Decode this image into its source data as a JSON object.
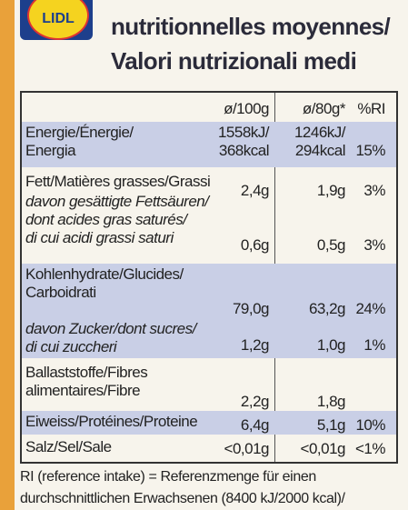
{
  "header": {
    "logo": "LIDL",
    "title_lines": [
      "nutritionnelles moyennes/",
      "Valori nutrizionali medi"
    ]
  },
  "table": {
    "columns": [
      "ø/100g",
      "ø/80g*",
      "%RI"
    ],
    "rows": [
      {
        "label": [
          "Energie/Énergie/",
          "Energia"
        ],
        "per100": [
          "1558kJ/",
          "368kcal"
        ],
        "per80": [
          "1246kJ/",
          "294kcal"
        ],
        "ri": "15%"
      },
      {
        "label": [
          "Fett/Matières grasses/Grassi"
        ],
        "per100": [
          "2,4g"
        ],
        "per80": [
          "1,9g"
        ],
        "ri": "3%"
      },
      {
        "label": [
          "davon gesättigte Fettsäuren/",
          "dont acides gras saturés/",
          "di cui acidi grassi saturi"
        ],
        "per100": [
          "0,6g"
        ],
        "per80": [
          "0,5g"
        ],
        "ri": "3%"
      },
      {
        "label": [
          "Kohlenhydrate/Glucides/",
          "Carboidrati"
        ],
        "per100": [
          "79,0g"
        ],
        "per80": [
          "63,2g"
        ],
        "ri": "24%"
      },
      {
        "label": [
          "davon Zucker/dont sucres/",
          "di cui zuccheri"
        ],
        "per100": [
          "1,2g"
        ],
        "per80": [
          "1,0g"
        ],
        "ri": "1%"
      },
      {
        "label": [
          "Ballaststoffe/Fibres",
          "alimentaires/Fibre"
        ],
        "per100": [
          "2,2g"
        ],
        "per80": [
          "1,8g"
        ]
      },
      {
        "label": [
          "Eiweiss/Protéines/Proteine"
        ],
        "per100": [
          "6,4g"
        ],
        "per80": [
          "5,1g"
        ],
        "ri": "10%"
      },
      {
        "label": [
          "Salz/Sel/Sale"
        ],
        "per100": [
          "<0,01g"
        ],
        "per80": [
          "<0,01g"
        ],
        "ri": "<1%"
      }
    ]
  },
  "footnote": [
    "RI (reference intake) = Referenzmenge für einen",
    "durchschnittlichen Erwachsenen (8400 kJ/2000 kcal)/"
  ]
}
